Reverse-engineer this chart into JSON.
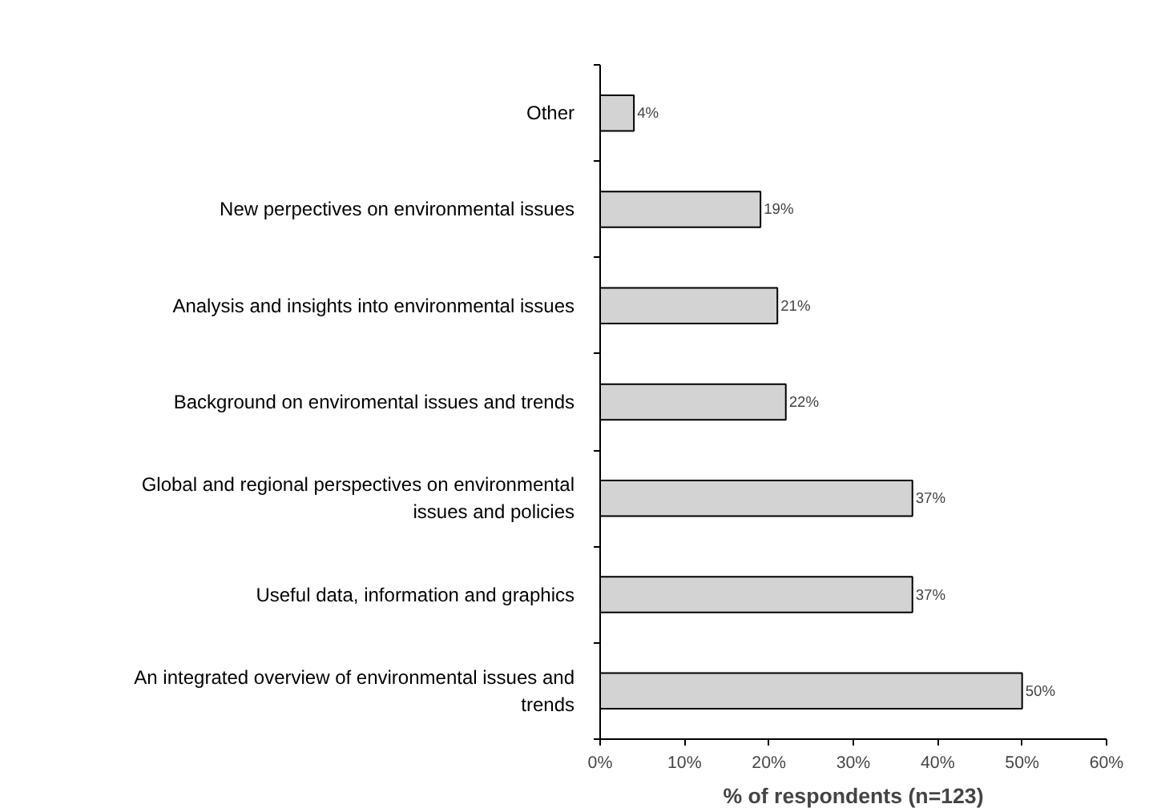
{
  "chart_data": {
    "type": "bar",
    "orientation": "horizontal",
    "categories": [
      "Other",
      "New perpectives on environmental issues",
      "Analysis and insights into environmental issues",
      "Background on enviromental issues and trends",
      "Global and regional perspectives on environmental issues and policies",
      "Useful data, information and graphics",
      "An integrated overview of environmental issues and trends"
    ],
    "values": [
      4,
      19,
      21,
      22,
      37,
      37,
      50
    ],
    "color": "#d3d3d3",
    "xlabel": "% of respondents (n=123)",
    "xlim": [
      0,
      60
    ],
    "xticks": [
      {
        "value": 0,
        "label": "0%"
      },
      {
        "value": 10,
        "label": "10%"
      },
      {
        "value": 20,
        "label": "20%"
      },
      {
        "value": 30,
        "label": "30%"
      },
      {
        "value": 40,
        "label": "40%"
      },
      {
        "value": 50,
        "label": "50%"
      },
      {
        "value": 60,
        "label": "60%"
      }
    ],
    "value_labels": [
      "4%",
      "19%",
      "21%",
      "22%",
      "37%",
      "37%",
      "50%"
    ],
    "grid": false
  }
}
